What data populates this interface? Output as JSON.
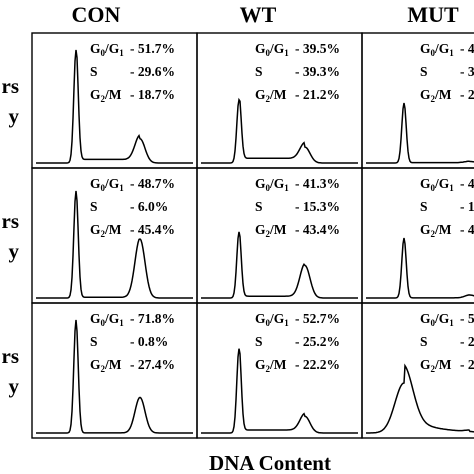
{
  "chart_data": {
    "type": "line",
    "title": "",
    "xlabel": "DNA Content",
    "ylabel": "",
    "grid": false,
    "columns": [
      "CON",
      "WT",
      "MUT"
    ],
    "row_labels": [
      [
        "rs",
        "y"
      ],
      [
        "rs",
        "y"
      ],
      [
        "rs",
        "y"
      ]
    ],
    "stat_labels": [
      "G0/G1",
      "S",
      "G2/M"
    ],
    "panels": [
      {
        "row": 0,
        "col": 0,
        "name": "CON",
        "stats": [
          "51.7%",
          "29.6%",
          "18.7%"
        ]
      },
      {
        "row": 0,
        "col": 1,
        "name": "WT",
        "stats": [
          "39.5%",
          "39.3%",
          "21.2%"
        ]
      },
      {
        "row": 0,
        "col": 2,
        "name": "MUT",
        "stats": [
          "4",
          "3",
          "2"
        ]
      },
      {
        "row": 1,
        "col": 0,
        "name": "CON",
        "stats": [
          "48.7%",
          "6.0%",
          "45.4%"
        ]
      },
      {
        "row": 1,
        "col": 1,
        "name": "WT",
        "stats": [
          "41.3%",
          "15.3%",
          "43.4%"
        ]
      },
      {
        "row": 1,
        "col": 2,
        "name": "MUT",
        "stats": [
          "4",
          "1",
          "4"
        ]
      },
      {
        "row": 2,
        "col": 0,
        "name": "CON",
        "stats": [
          "71.8%",
          "0.8%",
          "27.4%"
        ]
      },
      {
        "row": 2,
        "col": 1,
        "name": "WT",
        "stats": [
          "52.7%",
          "25.2%",
          "22.2%"
        ]
      },
      {
        "row": 2,
        "col": 2,
        "name": "MUT",
        "stats": [
          "5",
          "2",
          "2"
        ]
      }
    ]
  }
}
